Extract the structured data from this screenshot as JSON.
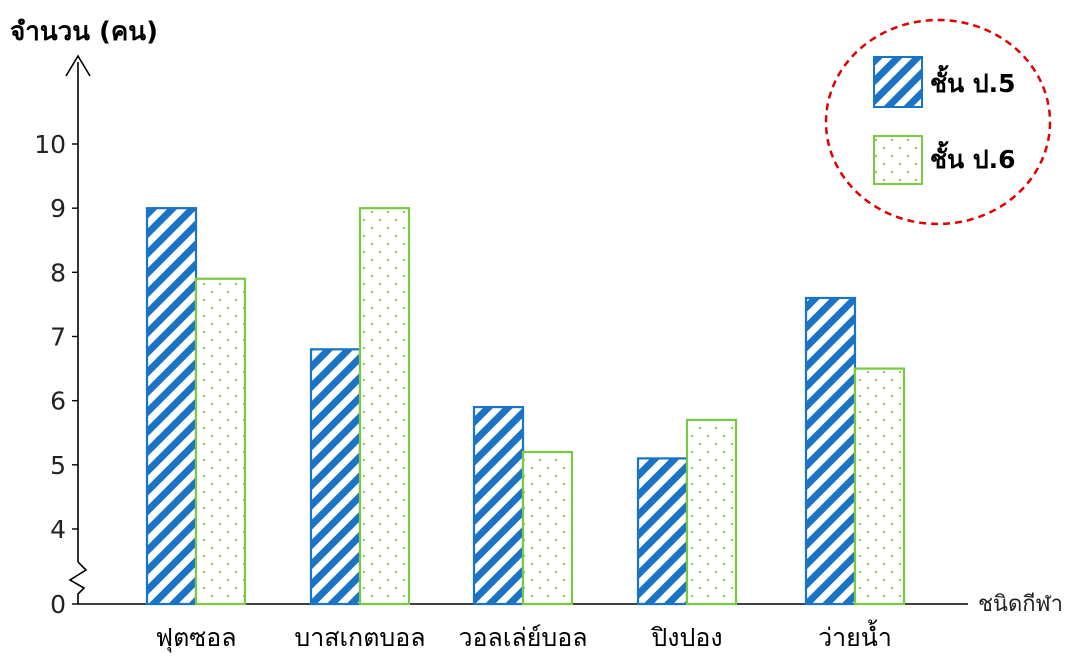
{
  "chart_data": {
    "type": "bar",
    "ylabel": "จำนวน (คน)",
    "xlabel": "ชนิดกีฬา",
    "categories": [
      "ฟุตซอล",
      "บาสเกตบอล",
      "วอลเล่ย์บอล",
      "ปิงปอง",
      "ว่ายน้ำ"
    ],
    "series": [
      {
        "name": "ชั้น ป.5",
        "values": [
          9,
          6.8,
          5.9,
          5.1,
          7.6
        ]
      },
      {
        "name": "ชั้น ป.6",
        "values": [
          7.9,
          9,
          5.2,
          5.7,
          6.5
        ]
      }
    ],
    "ylim": [
      4,
      10
    ],
    "axis_break": true,
    "yticks": [
      "0",
      "4",
      "5",
      "6",
      "7",
      "8",
      "9",
      "10"
    ],
    "grid": false,
    "legend_position": "top-right",
    "legend_outline": "dashed red circle",
    "colors": {
      "series_1": "#1a73c4",
      "series_2": "#7ac943",
      "legend_ring": "#e00000",
      "axis": "#000000"
    }
  }
}
